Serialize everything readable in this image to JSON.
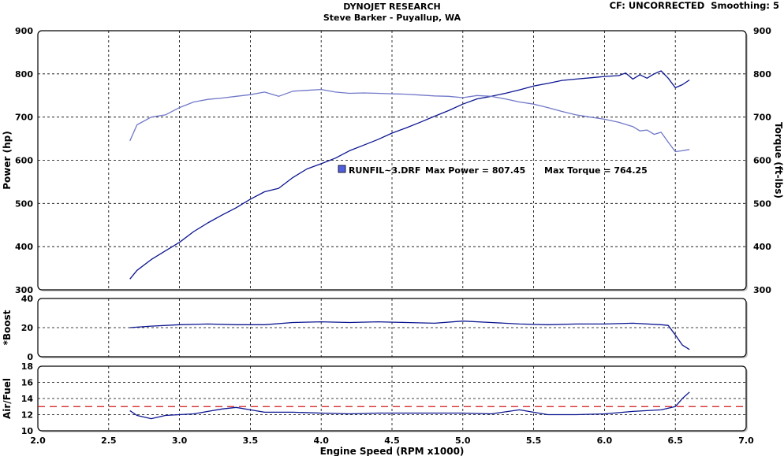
{
  "header": {
    "title": "DYNOJET RESEARCH",
    "subtitle": "Steve Barker - Puyallup, WA",
    "correction": "CF: UNCORRECTED  Smoothing: 5"
  },
  "colors": {
    "background": "#ffffff",
    "power_line": "#0b1590",
    "torque_line": "#7078c8",
    "boost_line": "#0b1590",
    "afr_line": "#0b1590",
    "afr_reference": "#d01818",
    "legend_marker": "#5060e0"
  },
  "chart_data": [
    {
      "type": "line",
      "panel": "power-torque",
      "xlabel": "Engine Speed (RPM x1000)",
      "ylabel": "Power (hp)",
      "ylabel_right": "Torque (ft-lbs)",
      "xlim": [
        2.0,
        7.0
      ],
      "xticks": [
        "2.0",
        "2.5",
        "3.0",
        "3.5",
        "4.0",
        "4.5",
        "5.0",
        "5.5",
        "6.0",
        "6.5",
        "7.0"
      ],
      "ylim": [
        300,
        900
      ],
      "yticks": [
        300,
        400,
        500,
        600,
        700,
        800,
        900
      ],
      "grid": true,
      "annotation": {
        "file": "RUNFIL~3.DRF",
        "max_power_label": "Max Power = 807.45",
        "max_torque_label": "Max Torque = 764.25"
      },
      "series": [
        {
          "role": "power",
          "x": [
            2.65,
            2.7,
            2.8,
            2.9,
            3.0,
            3.1,
            3.2,
            3.3,
            3.4,
            3.5,
            3.6,
            3.7,
            3.8,
            3.9,
            4.0,
            4.1,
            4.2,
            4.3,
            4.4,
            4.5,
            4.6,
            4.7,
            4.8,
            4.9,
            5.0,
            5.1,
            5.2,
            5.3,
            5.4,
            5.5,
            5.6,
            5.7,
            5.8,
            5.9,
            6.0,
            6.1,
            6.15,
            6.2,
            6.25,
            6.3,
            6.35,
            6.4,
            6.45,
            6.5,
            6.55,
            6.6
          ],
          "values": [
            325,
            345,
            370,
            390,
            410,
            435,
            455,
            473,
            490,
            510,
            527,
            535,
            560,
            580,
            592,
            605,
            622,
            635,
            648,
            663,
            675,
            688,
            702,
            715,
            730,
            742,
            748,
            755,
            763,
            772,
            778,
            785,
            788,
            791,
            794,
            796,
            802,
            788,
            798,
            790,
            800,
            807,
            790,
            768,
            775,
            786
          ]
        },
        {
          "role": "torque",
          "x": [
            2.65,
            2.7,
            2.8,
            2.9,
            3.0,
            3.1,
            3.2,
            3.3,
            3.4,
            3.5,
            3.6,
            3.7,
            3.8,
            3.9,
            4.0,
            4.1,
            4.2,
            4.3,
            4.4,
            4.5,
            4.6,
            4.7,
            4.8,
            4.9,
            5.0,
            5.1,
            5.2,
            5.3,
            5.4,
            5.5,
            5.6,
            5.7,
            5.8,
            5.9,
            6.0,
            6.1,
            6.2,
            6.25,
            6.3,
            6.35,
            6.4,
            6.45,
            6.5,
            6.55,
            6.6
          ],
          "values": [
            645,
            682,
            700,
            705,
            722,
            735,
            741,
            744,
            748,
            752,
            758,
            748,
            760,
            762,
            764,
            758,
            755,
            756,
            755,
            754,
            753,
            751,
            749,
            748,
            745,
            750,
            748,
            742,
            735,
            730,
            722,
            713,
            705,
            700,
            695,
            688,
            678,
            668,
            670,
            660,
            665,
            642,
            620,
            622,
            625
          ]
        }
      ]
    },
    {
      "type": "line",
      "panel": "boost",
      "ylabel": "*Boost",
      "xlim": [
        2.0,
        7.0
      ],
      "ylim": [
        0,
        40
      ],
      "yticks": [
        0,
        20,
        40
      ],
      "grid": true,
      "series": [
        {
          "role": "boost",
          "x": [
            2.65,
            2.8,
            3.0,
            3.2,
            3.4,
            3.6,
            3.8,
            4.0,
            4.2,
            4.4,
            4.6,
            4.8,
            5.0,
            5.2,
            5.4,
            5.6,
            5.8,
            6.0,
            6.2,
            6.4,
            6.45,
            6.5,
            6.55,
            6.6
          ],
          "values": [
            20,
            21,
            22,
            22.5,
            22,
            22,
            23.5,
            24,
            23.5,
            24,
            23.5,
            23,
            24.5,
            23.5,
            22.5,
            22,
            22.5,
            22.5,
            23,
            22,
            21.5,
            15,
            8,
            5
          ]
        }
      ]
    },
    {
      "type": "line",
      "panel": "air-fuel",
      "ylabel": "Air/Fuel",
      "xlim": [
        2.0,
        7.0
      ],
      "ylim": [
        10,
        18
      ],
      "yticks": [
        10,
        12,
        14,
        16,
        18
      ],
      "grid": true,
      "reference_line": 13,
      "series": [
        {
          "role": "air-fuel",
          "x": [
            2.65,
            2.7,
            2.8,
            2.9,
            3.0,
            3.1,
            3.2,
            3.3,
            3.4,
            3.5,
            3.6,
            3.8,
            4.0,
            4.2,
            4.4,
            4.6,
            4.8,
            5.0,
            5.2,
            5.4,
            5.6,
            5.8,
            6.0,
            6.2,
            6.4,
            6.5,
            6.55,
            6.6
          ],
          "values": [
            12.5,
            11.9,
            11.5,
            11.9,
            12.0,
            12.1,
            12.4,
            12.7,
            12.9,
            12.6,
            12.3,
            12.3,
            12.2,
            12.1,
            12.2,
            12.2,
            12.2,
            12.2,
            12.1,
            12.6,
            12.0,
            12.0,
            12.1,
            12.4,
            12.6,
            13.0,
            14.0,
            14.8
          ]
        }
      ]
    }
  ]
}
